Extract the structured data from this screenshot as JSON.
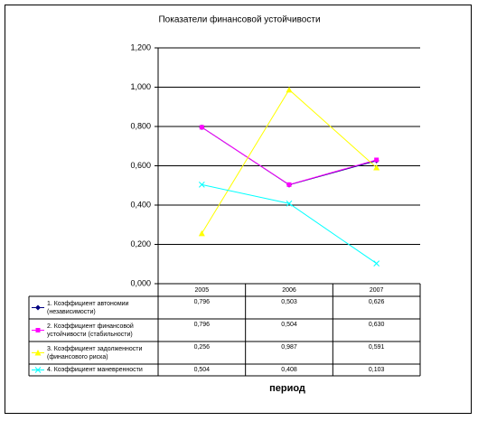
{
  "chart_data": {
    "type": "line",
    "title": "Показатели финансовой устойчивости",
    "categories": [
      "2005",
      "2006",
      "2007"
    ],
    "series": [
      {
        "name": "1. Коэффициент автономии (независимости)",
        "color": "#000080",
        "marker": "diamond",
        "values": [
          0.796,
          0.503,
          0.626
        ],
        "value_labels": [
          "0,796",
          "0,503",
          "0,626"
        ]
      },
      {
        "name": "2. Коэффициент финансовой устойчивости (стабильности)",
        "color": "#ff00ff",
        "marker": "square",
        "values": [
          0.796,
          0.504,
          0.63
        ],
        "value_labels": [
          "0,796",
          "0,504",
          "0,630"
        ]
      },
      {
        "name": "3. Коэффициент задолженности (финансового риска)",
        "color": "#ffff00",
        "marker": "triangle",
        "values": [
          0.256,
          0.987,
          0.591
        ],
        "value_labels": [
          "0,256",
          "0,987",
          "0,591"
        ]
      },
      {
        "name": "4. Коэффициент маневренности",
        "color": "#00ffff",
        "marker": "x",
        "values": [
          0.504,
          0.408,
          0.103
        ],
        "value_labels": [
          "0,504",
          "0,408",
          "0,103"
        ]
      }
    ],
    "ylim": [
      0,
      1.2
    ],
    "yticks": [
      {
        "value": 0,
        "label": "0,000"
      },
      {
        "value": 0.2,
        "label": "0,200"
      },
      {
        "value": 0.4,
        "label": "0,400"
      },
      {
        "value": 0.6,
        "label": "0,600"
      },
      {
        "value": 0.8,
        "label": "0,800"
      },
      {
        "value": 1,
        "label": "1,000"
      },
      {
        "value": 1.2,
        "label": "1,200"
      }
    ],
    "grid": true,
    "x_label": "период"
  }
}
